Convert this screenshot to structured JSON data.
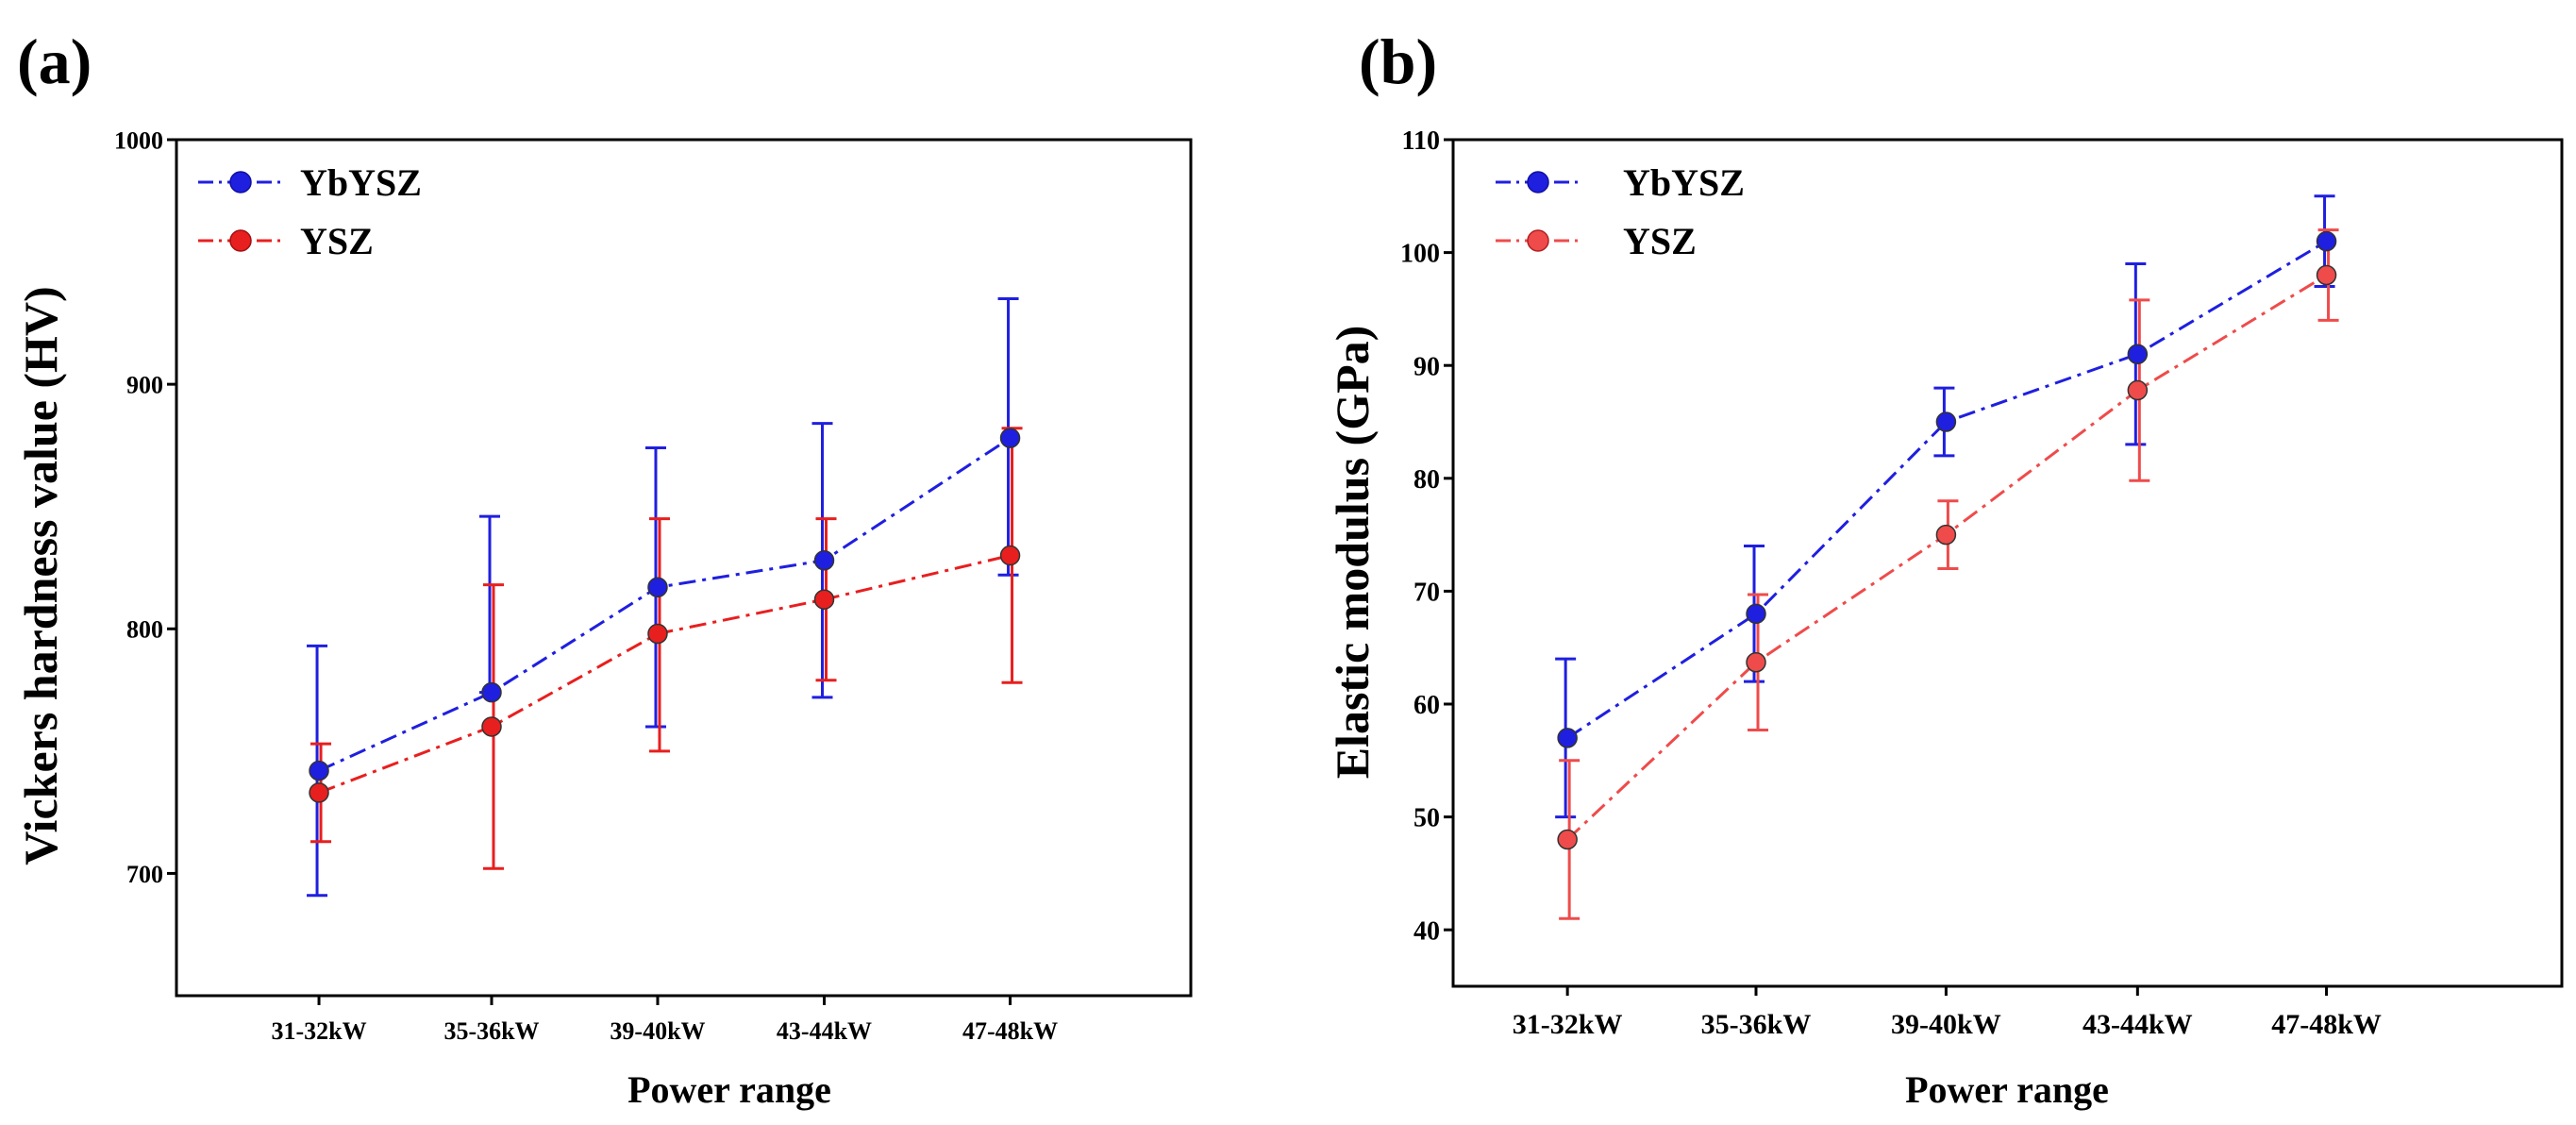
{
  "chart_data": [
    {
      "panel_label": "(a)",
      "type": "line",
      "categories": [
        "31-32kW",
        "35-36kW",
        "39-40kW",
        "43-44kW",
        "47-48kW"
      ],
      "xlabel": "Power range",
      "ylabel": "Vickers hardness value (HV)",
      "ylim": [
        650,
        1000
      ],
      "yticks": [
        700,
        800,
        900,
        1000
      ],
      "grid": false,
      "legend_position": "top-left",
      "series": [
        {
          "name": "YbYSZ",
          "color": "#1f1fe0",
          "values": [
            742,
            774,
            817,
            828,
            878
          ],
          "err_low": [
            691,
            774,
            760,
            772,
            822
          ],
          "err_high": [
            793,
            846,
            874,
            884,
            935
          ]
        },
        {
          "name": "YSZ",
          "color": "#e81f1f",
          "values": [
            733,
            760,
            798,
            812,
            830
          ],
          "err_low": [
            713,
            702,
            750,
            779,
            778
          ],
          "err_high": [
            753,
            818,
            845,
            845,
            882
          ]
        }
      ]
    },
    {
      "panel_label": "(b)",
      "type": "line",
      "categories": [
        "31-32kW",
        "35-36kW",
        "39-40kW",
        "43-44kW",
        "47-48kW"
      ],
      "xlabel": "Power range",
      "ylabel": "Elastic modulus (GPa)",
      "ylim": [
        35,
        110
      ],
      "yticks": [
        40,
        50,
        60,
        70,
        80,
        90,
        100,
        110
      ],
      "grid": false,
      "legend_position": "top-left",
      "series": [
        {
          "name": "YbYSZ",
          "color": "#1f1fe0",
          "values": [
            57,
            68,
            85,
            91,
            101
          ],
          "err_low": [
            50,
            62,
            82,
            83,
            97
          ],
          "err_high": [
            64,
            74,
            88,
            99,
            105
          ]
        },
        {
          "name": "YSZ",
          "color": "#ef4b4b",
          "values": [
            48,
            63.7,
            75,
            87.8,
            98
          ],
          "err_low": [
            41,
            57.7,
            72,
            79.8,
            94
          ],
          "err_high": [
            55,
            69.7,
            78,
            95.8,
            102
          ]
        }
      ]
    }
  ]
}
